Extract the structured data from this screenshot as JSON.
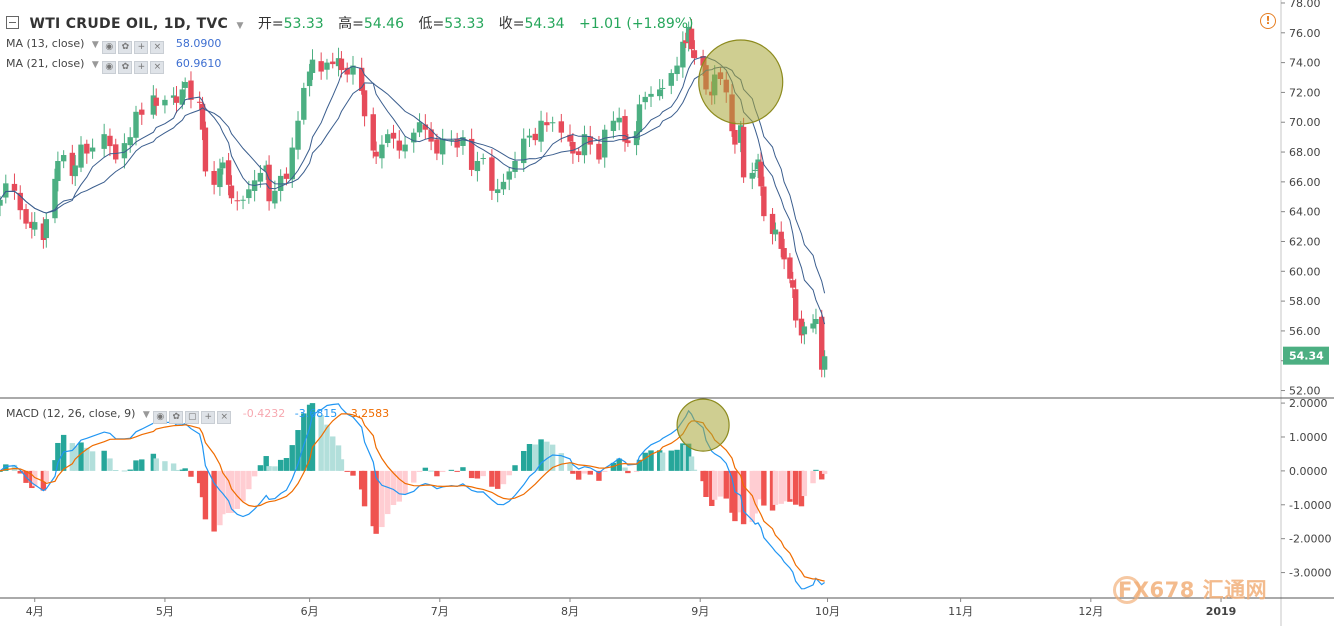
{
  "header": {
    "symbol": "WTI CRUDE OIL, 1D, TVC",
    "open_label": "开=",
    "open": "53.33",
    "high_label": "高=",
    "high": "54.46",
    "low_label": "低=",
    "low": "53.33",
    "close_label": "收=",
    "close": "54.34",
    "change": "+1.01 (+1.89%)"
  },
  "indicators": [
    {
      "label": "MA (13, close)",
      "value": "58.0900",
      "color": "#3e6fd1"
    },
    {
      "label": "MA (21, close)",
      "value": "60.9610",
      "color": "#3e6fd1"
    },
    {
      "label": "MACD (12, 26, close, 9)",
      "values": [
        "-0.4232",
        "-3.6815",
        "-3.2583"
      ],
      "colors": [
        "#f7a8b0",
        "#2196f3",
        "#ef6c00"
      ]
    }
  ],
  "last_price": "54.34",
  "watermark": "FX678 汇通网",
  "alert_icon": "!",
  "chart_data": {
    "type": "candlestick",
    "colors": {
      "up": "#4caf82",
      "down": "#e64b5a",
      "ma": "#3b5e8e",
      "macd": "#2196f3",
      "signal": "#ef6c00",
      "hist_up_strong": "#26a69a",
      "hist_up_weak": "#b2dfdb",
      "hist_down_strong": "#ef5350",
      "hist_down_weak": "#ffcdd2",
      "highlight": "#a8a636"
    },
    "price_axis": {
      "ticks": [
        "78.00",
        "76.00",
        "74.00",
        "72.00",
        "70.00",
        "68.00",
        "66.00",
        "64.00",
        "62.00",
        "60.00",
        "58.00",
        "56.00",
        "54.00",
        "52.00"
      ],
      "range": [
        51.5,
        78.2
      ]
    },
    "macd_axis": {
      "ticks": [
        "2.0000",
        "1.0000",
        "0.0000",
        "-1.0000",
        "-2.0000",
        "-3.0000"
      ],
      "range": [
        -3.75,
        2.15
      ]
    },
    "time_axis": {
      "labels": [
        "4月",
        "5月",
        "6月",
        "7月",
        "8月",
        "9月",
        "10月",
        "11月",
        "12月",
        "2019"
      ],
      "label_day": [
        22,
        67,
        117,
        162,
        207,
        252,
        296,
        342,
        387,
        432
      ]
    },
    "day_range": [
      10,
      451
    ],
    "daily_close": [
      [
        10,
        64.8
      ],
      [
        12,
        65.9
      ],
      [
        15,
        65.4
      ],
      [
        17,
        64.1
      ],
      [
        19,
        63.2
      ],
      [
        21,
        62.9
      ],
      [
        22,
        63.3
      ],
      [
        25,
        62.1
      ],
      [
        26,
        63.5
      ],
      [
        29,
        66.2
      ],
      [
        30,
        67.4
      ],
      [
        32,
        67.8
      ],
      [
        35,
        66.4
      ],
      [
        36,
        67.1
      ],
      [
        38,
        68.5
      ],
      [
        40,
        67.9
      ],
      [
        42,
        68.3
      ],
      [
        46,
        69.2
      ],
      [
        48,
        68.4
      ],
      [
        50,
        67.5
      ],
      [
        53,
        68.6
      ],
      [
        55,
        69.0
      ],
      [
        57,
        70.7
      ],
      [
        59,
        70.5
      ],
      [
        63,
        71.8
      ],
      [
        64,
        71.1
      ],
      [
        67,
        71.5
      ],
      [
        70,
        71.8
      ],
      [
        71,
        71.3
      ],
      [
        73,
        72.2
      ],
      [
        74,
        72.7
      ],
      [
        76,
        71.5
      ],
      [
        79,
        71.3
      ],
      [
        80,
        69.5
      ],
      [
        81,
        66.7
      ],
      [
        84,
        65.8
      ],
      [
        86,
        66.9
      ],
      [
        87,
        67.3
      ],
      [
        89,
        65.8
      ],
      [
        90,
        64.9
      ],
      [
        92,
        64.7
      ],
      [
        94,
        64.8
      ],
      [
        96,
        65.5
      ],
      [
        98,
        66.1
      ],
      [
        100,
        66.6
      ],
      [
        102,
        67.1
      ],
      [
        103,
        64.7
      ],
      [
        105,
        65.4
      ],
      [
        107,
        66.4
      ],
      [
        109,
        66.2
      ],
      [
        111,
        68.3
      ],
      [
        113,
        70.1
      ],
      [
        115,
        72.3
      ],
      [
        117,
        73.4
      ],
      [
        118,
        74.2
      ],
      [
        121,
        73.4
      ],
      [
        123,
        74.0
      ],
      [
        125,
        73.9
      ],
      [
        127,
        74.3
      ],
      [
        128,
        73.5
      ],
      [
        130,
        73.2
      ],
      [
        132,
        73.8
      ],
      [
        135,
        72.1
      ],
      [
        136,
        70.4
      ],
      [
        139,
        68.1
      ],
      [
        140,
        67.7
      ],
      [
        142,
        68.5
      ],
      [
        144,
        69.2
      ],
      [
        146,
        68.9
      ],
      [
        148,
        68.1
      ],
      [
        150,
        68.5
      ],
      [
        153,
        69.3
      ],
      [
        155,
        70.0
      ],
      [
        157,
        69.5
      ],
      [
        159,
        68.7
      ],
      [
        161,
        67.9
      ],
      [
        163,
        68.9
      ],
      [
        166,
        68.8
      ],
      [
        168,
        68.3
      ],
      [
        170,
        69.0
      ],
      [
        173,
        66.8
      ],
      [
        175,
        67.4
      ],
      [
        177,
        67.6
      ],
      [
        180,
        65.4
      ],
      [
        182,
        65.5
      ],
      [
        184,
        66.0
      ],
      [
        186,
        66.7
      ],
      [
        188,
        67.4
      ],
      [
        191,
        68.9
      ],
      [
        193,
        69.1
      ],
      [
        195,
        68.8
      ],
      [
        197,
        70.1
      ],
      [
        199,
        69.8
      ],
      [
        201,
        70.0
      ],
      [
        204,
        69.3
      ],
      [
        207,
        68.7
      ],
      [
        208,
        67.9
      ],
      [
        210,
        67.8
      ],
      [
        212,
        69.2
      ],
      [
        214,
        68.5
      ],
      [
        217,
        67.5
      ],
      [
        219,
        69.5
      ],
      [
        222,
        70.1
      ],
      [
        224,
        70.3
      ],
      [
        226,
        68.7
      ],
      [
        227,
        68.6
      ],
      [
        230,
        69.4
      ],
      [
        231,
        71.2
      ],
      [
        233,
        71.7
      ],
      [
        235,
        71.9
      ],
      [
        238,
        72.2
      ],
      [
        239,
        72.3
      ],
      [
        242,
        73.3
      ],
      [
        244,
        73.8
      ],
      [
        246,
        75.4
      ],
      [
        247,
        75.3
      ],
      [
        248,
        76.4
      ],
      [
        249,
        74.9
      ],
      [
        250,
        74.3
      ],
      [
        253,
        73.8
      ],
      [
        254,
        72.2
      ],
      [
        256,
        71.8
      ],
      [
        257,
        73.2
      ],
      [
        259,
        72.9
      ],
      [
        261,
        72.0
      ],
      [
        263,
        69.4
      ],
      [
        264,
        68.5
      ],
      [
        266,
        69.8
      ],
      [
        267,
        66.3
      ],
      [
        270,
        66.6
      ],
      [
        271,
        66.8
      ],
      [
        272,
        67.5
      ],
      [
        273,
        65.7
      ],
      [
        274,
        63.7
      ],
      [
        277,
        62.5
      ],
      [
        278,
        62.8
      ],
      [
        280,
        61.5
      ],
      [
        281,
        60.8
      ],
      [
        283,
        59.5
      ],
      [
        284,
        58.9
      ],
      [
        285,
        56.7
      ],
      [
        287,
        55.7
      ],
      [
        288,
        56.3
      ],
      [
        291,
        56.5
      ],
      [
        292,
        56.8
      ],
      [
        294,
        53.4
      ],
      [
        295,
        54.3
      ]
    ],
    "note_shape": "candles drawn as open/close/high/low derived from consecutive closes"
  },
  "highlights": [
    {
      "panel": "price",
      "day": 266,
      "value": 72.7,
      "kind": "circle"
    },
    {
      "panel": "macd",
      "day": 253,
      "value": 1.35,
      "kind": "circle"
    }
  ]
}
